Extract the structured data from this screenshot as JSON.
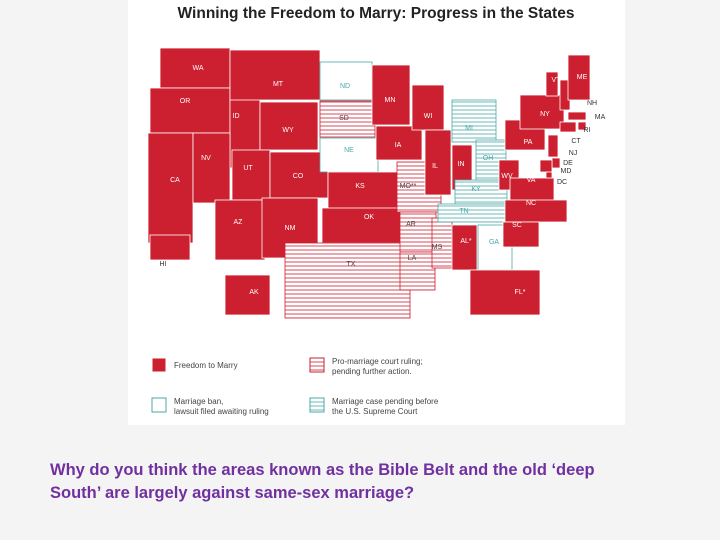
{
  "title": "Winning the Freedom to Marry: Progress in the States",
  "states": [
    {
      "label": "WA",
      "color": "#cc1f2f",
      "style": "solid"
    },
    {
      "label": "OR",
      "color": "#cc1f2f",
      "style": "solid"
    },
    {
      "label": "CA",
      "color": "#cc1f2f",
      "style": "solid"
    },
    {
      "label": "ID",
      "color": "#cc1f2f",
      "style": "solid"
    },
    {
      "label": "NV",
      "color": "#cc1f2f",
      "style": "solid"
    },
    {
      "label": "MT",
      "color": "#cc1f2f",
      "style": "solid"
    },
    {
      "label": "WY",
      "color": "#cc1f2f",
      "style": "solid"
    },
    {
      "label": "UT",
      "color": "#cc1f2f",
      "style": "solid"
    },
    {
      "label": "AZ",
      "color": "#cc1f2f",
      "style": "solid"
    },
    {
      "label": "CO",
      "color": "#cc1f2f",
      "style": "solid"
    },
    {
      "label": "NM",
      "color": "#cc1f2f",
      "style": "solid"
    },
    {
      "label": "ND",
      "color": "#4aa8a8",
      "style": "outline"
    },
    {
      "label": "SD",
      "color": "#cc1f2f",
      "style": "striped"
    },
    {
      "label": "NE",
      "color": "#4aa8a8",
      "style": "outline"
    },
    {
      "label": "KS",
      "color": "#cc1f2f",
      "style": "solid"
    },
    {
      "label": "OK",
      "color": "#cc1f2f",
      "style": "solid"
    },
    {
      "label": "TX",
      "color": "#cc1f2f",
      "style": "striped"
    },
    {
      "label": "MN",
      "color": "#cc1f2f",
      "style": "solid"
    },
    {
      "label": "IA",
      "color": "#cc1f2f",
      "style": "solid"
    },
    {
      "label": "MO**",
      "color": "#cc1f2f",
      "style": "striped"
    },
    {
      "label": "AR",
      "color": "#cc1f2f",
      "style": "striped"
    },
    {
      "label": "LA",
      "color": "#cc1f2f",
      "style": "striped"
    },
    {
      "label": "WI",
      "color": "#cc1f2f",
      "style": "solid"
    },
    {
      "label": "IL",
      "color": "#cc1f2f",
      "style": "solid"
    },
    {
      "label": "MS",
      "color": "#cc1f2f",
      "style": "striped"
    },
    {
      "label": "MI",
      "color": "#4aa8a8",
      "style": "striped"
    },
    {
      "label": "IN",
      "color": "#cc1f2f",
      "style": "solid"
    },
    {
      "label": "KY",
      "color": "#4aa8a8",
      "style": "striped"
    },
    {
      "label": "TN",
      "color": "#4aa8a8",
      "style": "striped"
    },
    {
      "label": "AL*",
      "color": "#cc1f2f",
      "style": "solid"
    },
    {
      "label": "OH",
      "color": "#4aa8a8",
      "style": "striped"
    },
    {
      "label": "GA",
      "color": "#4aa8a8",
      "style": "outline"
    },
    {
      "label": "FL*",
      "color": "#cc1f2f",
      "style": "solid"
    },
    {
      "label": "WV",
      "color": "#cc1f2f",
      "style": "solid"
    },
    {
      "label": "VA",
      "color": "#cc1f2f",
      "style": "solid"
    },
    {
      "label": "NC",
      "color": "#cc1f2f",
      "style": "solid"
    },
    {
      "label": "SC",
      "color": "#cc1f2f",
      "style": "solid"
    },
    {
      "label": "PA",
      "color": "#cc1f2f",
      "style": "solid"
    },
    {
      "label": "NY",
      "color": "#cc1f2f",
      "style": "solid"
    },
    {
      "label": "VT",
      "color": "#cc1f2f",
      "style": "solid"
    },
    {
      "label": "NH",
      "color": "#cc1f2f",
      "style": "solid"
    },
    {
      "label": "ME",
      "color": "#cc1f2f",
      "style": "solid"
    },
    {
      "label": "MA",
      "color": "#cc1f2f",
      "style": "solid"
    },
    {
      "label": "RI",
      "color": "#cc1f2f",
      "style": "solid"
    },
    {
      "label": "CT",
      "color": "#cc1f2f",
      "style": "solid"
    },
    {
      "label": "NJ",
      "color": "#cc1f2f",
      "style": "solid"
    },
    {
      "label": "DE",
      "color": "#cc1f2f",
      "style": "solid"
    },
    {
      "label": "MD",
      "color": "#cc1f2f",
      "style": "solid"
    },
    {
      "label": "DC",
      "color": "#cc1f2f",
      "style": "solid"
    },
    {
      "label": "AK",
      "color": "#cc1f2f",
      "style": "solid"
    },
    {
      "label": "HI",
      "color": "#cc1f2f",
      "style": "solid"
    }
  ],
  "legend": [
    {
      "lines": [
        "Freedom to Marry"
      ],
      "color": "#cc1f2f",
      "style": "solid"
    },
    {
      "lines": [
        "Pro-marriage court ruling;",
        "pending further action."
      ],
      "color": "#cc1f2f",
      "style": "striped"
    },
    {
      "lines": [
        "Marriage ban,",
        "lawsuit filed awaiting ruling"
      ],
      "color": "#4aa8a8",
      "style": "outline"
    },
    {
      "lines": [
        "Marriage case pending before",
        "the U.S. Supreme Court"
      ],
      "color": "#4aa8a8",
      "style": "striped"
    }
  ],
  "question": [
    "Why do you think the areas known as the Bible Belt and the old ‘deep",
    "South’ are largely against same-sex marriage?"
  ]
}
